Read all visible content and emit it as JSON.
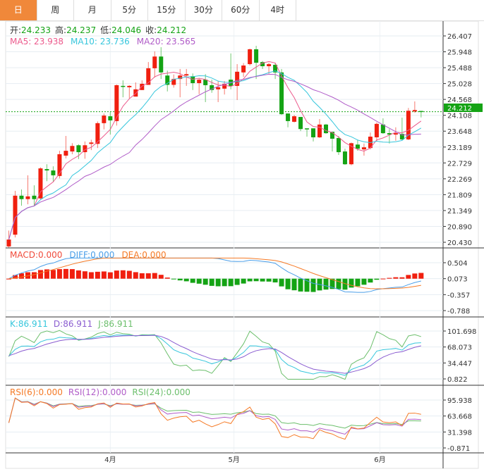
{
  "tabs": [
    {
      "label": "日",
      "active": true
    },
    {
      "label": "周"
    },
    {
      "label": "月"
    },
    {
      "label": "5分"
    },
    {
      "label": "15分"
    },
    {
      "label": "30分"
    },
    {
      "label": "60分"
    },
    {
      "label": "4时"
    }
  ],
  "info": {
    "open_label": "开:",
    "open": "24.233",
    "high_label": "高:",
    "high": "24.237",
    "low_label": "低:",
    "low": "24.046",
    "close_label": "收:",
    "close": "24.212",
    "ma5": "MA5: 23.938",
    "ma10": "MA10: 23.736",
    "ma20": "MA20: 23.565"
  },
  "macd_legend": {
    "macd": "MACD:0.000",
    "diff": "DIFF:0.000",
    "dea": "DEA:0.000"
  },
  "kdj_legend": {
    "k": "K:86.911",
    "d": "D:86.911",
    "j": "J:86.911"
  },
  "rsi_legend": {
    "rsi6": "RSI(6):0.000",
    "rsi12": "RSI(12):0.000",
    "rsi24": "RSI(24):0.000"
  },
  "last_price": "24.212",
  "colors": {
    "up": "#f01f0f",
    "down": "#14a314",
    "ma5": "#ec5a8c",
    "ma10": "#36c6dc",
    "ma20": "#b05cc8",
    "accent": "#f0883a",
    "diff": "#4a9ee8",
    "dea": "#f57a26",
    "k": "#36c6dc",
    "d": "#8a5cd0",
    "j": "#6cbf6c",
    "rsi6": "#f57a26",
    "rsi12": "#b05cc8",
    "rsi24": "#6cbf6c"
  },
  "chart_data": {
    "type": "candlestick",
    "x_labels": [
      {
        "label": "4月",
        "index": 16
      },
      {
        "label": "5月",
        "index": 35.5
      },
      {
        "label": "6月",
        "index": 58.5
      }
    ],
    "price_ticks": [
      "26.407",
      "25.948",
      "25.488",
      "25.028",
      "24.568",
      "24.108",
      "23.648",
      "23.189",
      "22.729",
      "22.269",
      "21.809",
      "21.349",
      "20.890",
      "20.430"
    ],
    "price_range": [
      20.43,
      26.407
    ],
    "macd_ticks": [
      "0.504",
      "0.073",
      "-0.357",
      "-0.788"
    ],
    "macd_range": [
      -0.788,
      0.504
    ],
    "kdj_ticks": [
      "101.698",
      "68.073",
      "34.447",
      "0.822"
    ],
    "kdj_range": [
      0.822,
      101.698
    ],
    "rsi_ticks": [
      "95.938",
      "63.668",
      "31.398",
      "-0.871"
    ],
    "rsi_range": [
      -0.871,
      95.938
    ],
    "candles_ohlc": [
      [
        20.31,
        20.51,
        20.77,
        20.28
      ],
      [
        20.65,
        21.78,
        21.92,
        20.57
      ],
      [
        21.78,
        21.68,
        21.96,
        21.49
      ],
      [
        21.68,
        21.76,
        22.37,
        21.53
      ],
      [
        21.78,
        21.68,
        22.08,
        21.49
      ],
      [
        21.7,
        22.57,
        22.6,
        21.66
      ],
      [
        22.55,
        22.51,
        22.69,
        22.2
      ],
      [
        22.51,
        22.37,
        22.63,
        22.18
      ],
      [
        22.35,
        22.98,
        23.08,
        22.28
      ],
      [
        22.94,
        23.08,
        23.51,
        22.86
      ],
      [
        23.06,
        23.22,
        23.3,
        22.98
      ],
      [
        23.24,
        23.04,
        23.27,
        22.84
      ],
      [
        23.04,
        23.24,
        23.35,
        22.85
      ],
      [
        23.28,
        23.32,
        23.4,
        23.1
      ],
      [
        23.28,
        23.88,
        23.93,
        23.16
      ],
      [
        23.88,
        24.1,
        24.16,
        23.7
      ],
      [
        24.08,
        23.96,
        24.2,
        23.55
      ],
      [
        23.94,
        24.98,
        25.0,
        23.81
      ],
      [
        24.96,
        24.94,
        25.12,
        24.63
      ],
      [
        24.92,
        24.96,
        24.98,
        24.6
      ],
      [
        24.65,
        24.86,
        25.06,
        24.65
      ],
      [
        24.84,
        25.02,
        25.12,
        24.84
      ],
      [
        24.99,
        25.47,
        25.65,
        24.99
      ],
      [
        25.47,
        25.81,
        25.96,
        25.2
      ],
      [
        25.81,
        25.35,
        26.08,
        25.16
      ],
      [
        25.26,
        24.99,
        25.4,
        24.8
      ],
      [
        24.99,
        25.16,
        25.29,
        24.91
      ],
      [
        25.16,
        25.26,
        25.45,
        24.63
      ],
      [
        25.26,
        25.3,
        25.45,
        24.96
      ],
      [
        25.24,
        25.04,
        25.32,
        24.84
      ],
      [
        25.04,
        25.14,
        25.18,
        24.72
      ],
      [
        25.14,
        24.98,
        25.3,
        24.49
      ],
      [
        24.98,
        24.84,
        25.14,
        24.76
      ],
      [
        24.86,
        24.92,
        25.1,
        24.49
      ],
      [
        24.88,
        25.02,
        25.1,
        24.71
      ],
      [
        25.14,
        24.96,
        25.9,
        24.86
      ],
      [
        24.96,
        25.37,
        25.59,
        24.55
      ],
      [
        25.35,
        25.55,
        25.62,
        25.22
      ],
      [
        25.59,
        26.02,
        26.04,
        25.55
      ],
      [
        26.02,
        25.63,
        26.12,
        25.16
      ],
      [
        25.65,
        25.53,
        25.68,
        25.45
      ],
      [
        25.53,
        25.59,
        25.63,
        25.31
      ],
      [
        25.57,
        25.35,
        25.63,
        25.16
      ],
      [
        25.35,
        24.14,
        25.45,
        24.12
      ],
      [
        24.16,
        23.94,
        24.16,
        23.76
      ],
      [
        23.92,
        24.08,
        24.12,
        23.9
      ],
      [
        24.06,
        23.71,
        24.06,
        23.65
      ],
      [
        23.73,
        23.71,
        23.73,
        23.49
      ],
      [
        23.73,
        23.47,
        23.73,
        23.35
      ],
      [
        23.47,
        23.84,
        24.0,
        23.45
      ],
      [
        23.84,
        23.59,
        23.86,
        23.57
      ],
      [
        23.63,
        23.43,
        23.63,
        23.06
      ],
      [
        23.45,
        23.04,
        23.51,
        22.96
      ],
      [
        23.06,
        22.69,
        23.14,
        22.67
      ],
      [
        22.69,
        23.3,
        23.32,
        22.66
      ],
      [
        23.26,
        23.14,
        23.4,
        23.08
      ],
      [
        23.12,
        23.18,
        23.29,
        22.94
      ],
      [
        23.16,
        23.49,
        23.61,
        23.12
      ],
      [
        23.47,
        23.86,
        23.9,
        23.35
      ],
      [
        23.84,
        23.59,
        24.02,
        23.57
      ],
      [
        23.59,
        23.55,
        23.71,
        23.29
      ],
      [
        23.55,
        23.59,
        23.76,
        23.37
      ],
      [
        23.57,
        23.41,
        24.04,
        23.39
      ],
      [
        23.41,
        24.24,
        24.32,
        23.39
      ],
      [
        24.22,
        24.26,
        24.51,
        24.18
      ],
      [
        24.233,
        24.212,
        24.237,
        24.046
      ]
    ]
  }
}
